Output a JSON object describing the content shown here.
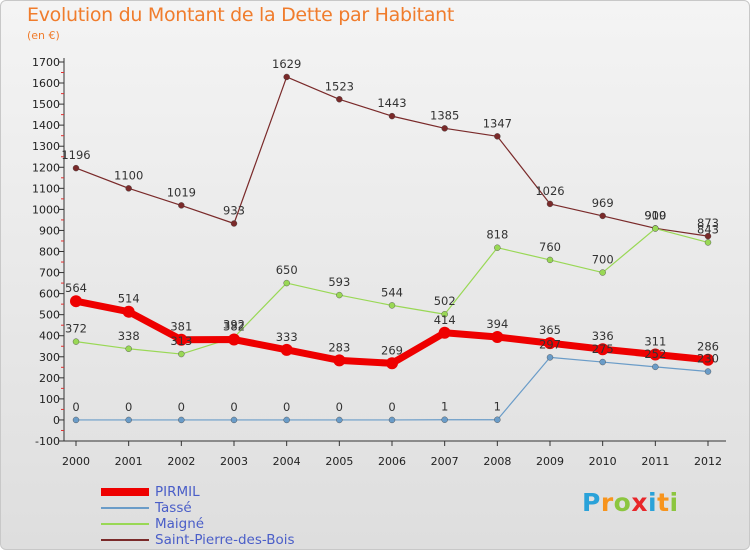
{
  "header": {
    "title": "Evolution du Montant de la Dette par Habitant",
    "unit": "(en €)"
  },
  "brand": {
    "letters": [
      "P",
      "r",
      "o",
      "x",
      "i",
      "t",
      "i"
    ],
    "colors": [
      "#2aa2d9",
      "#f7941d",
      "#8cc63f",
      "#e8262a",
      "#2aa2d9",
      "#f7941d",
      "#8cc63f"
    ]
  },
  "chart_data": {
    "type": "line",
    "title": "Evolution du Montant de la Dette par Habitant",
    "ylabel": "(en €)",
    "xlabel": "",
    "x": [
      "2000",
      "2001",
      "2002",
      "2003",
      "2004",
      "2005",
      "2006",
      "2007",
      "2008",
      "2009",
      "2010",
      "2011",
      "2012"
    ],
    "ylim": [
      -100,
      1700
    ],
    "yticks": [
      -100,
      0,
      100,
      200,
      300,
      400,
      500,
      600,
      700,
      800,
      900,
      1000,
      1100,
      1200,
      1300,
      1400,
      1500,
      1600,
      1700
    ],
    "grid": false,
    "legend_position": "bottom-left",
    "series": [
      {
        "name": "Saint-Pierre-des-Bois",
        "color": "#7a2a2a",
        "values": [
          1196,
          1100,
          1019,
          933,
          1629,
          1523,
          1443,
          1385,
          1347,
          1026,
          969,
          910,
          873
        ]
      },
      {
        "name": "Maigné",
        "color": "#99d855",
        "values": [
          372,
          338,
          313,
          392,
          650,
          593,
          544,
          502,
          818,
          760,
          700,
          909,
          843
        ]
      },
      {
        "name": "Tassé",
        "color": "#6a9cc8",
        "values": [
          0,
          0,
          0,
          0,
          0,
          0,
          0,
          1,
          1,
          297,
          275,
          252,
          230
        ]
      },
      {
        "name": "PIRMIL",
        "color": "#ee0000",
        "values": [
          564,
          514,
          381,
          382,
          333,
          283,
          269,
          414,
          394,
          365,
          336,
          311,
          286
        ]
      }
    ]
  }
}
